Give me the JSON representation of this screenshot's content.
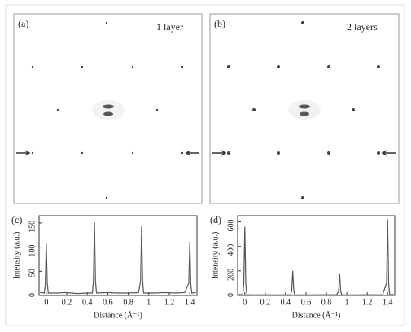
{
  "panels": [
    {
      "label": "(a)",
      "caption": "1 layer"
    },
    {
      "label": "(b)",
      "caption": "2 layers"
    }
  ],
  "chart_data": [
    {
      "type": "line",
      "label": "(c)",
      "x_label": "Distance (Å⁻¹)",
      "y_label": "Intensity (a.u.)",
      "color": "#555555",
      "x": [
        -0.06,
        -0.02,
        -0.01,
        0,
        0.01,
        0.02,
        0.1,
        0.2,
        0.3,
        0.4,
        0.45,
        0.46,
        0.47,
        0.48,
        0.49,
        0.6,
        0.7,
        0.8,
        0.9,
        0.92,
        0.93,
        0.94,
        0.95,
        1.05,
        1.15,
        1.25,
        1.35,
        1.39,
        1.4,
        1.41,
        1.42,
        1.46
      ],
      "series": [
        {
          "values": [
            6,
            5,
            20,
            108,
            25,
            5,
            5,
            6,
            4,
            5,
            5,
            30,
            152,
            30,
            5,
            6,
            5,
            5,
            6,
            30,
            143,
            30,
            5,
            5,
            6,
            5,
            6,
            25,
            110,
            22,
            5,
            6
          ]
        }
      ],
      "xlim": [
        -0.07,
        1.47
      ],
      "xticks": [
        0,
        0.2,
        0.4,
        0.6,
        0.8,
        1,
        1.2,
        1.4
      ],
      "ylim": [
        0,
        165
      ],
      "yticks": [
        0,
        50,
        100,
        150
      ]
    },
    {
      "type": "line",
      "label": "(d)",
      "x_label": "Distance (Å⁻¹)",
      "y_label": "Intensity (a.u.)",
      "color": "#555555",
      "x": [
        -0.06,
        -0.02,
        -0.01,
        0,
        0.01,
        0.02,
        0.1,
        0.2,
        0.3,
        0.4,
        0.45,
        0.46,
        0.47,
        0.48,
        0.49,
        0.6,
        0.7,
        0.8,
        0.9,
        0.92,
        0.93,
        0.94,
        0.95,
        1.05,
        1.15,
        1.25,
        1.35,
        1.39,
        1.4,
        1.41,
        1.42,
        1.46
      ],
      "series": [
        {
          "values": [
            8,
            6,
            100,
            560,
            90,
            6,
            4,
            5,
            4,
            5,
            5,
            40,
            200,
            40,
            5,
            4,
            5,
            5,
            5,
            35,
            175,
            35,
            5,
            4,
            5,
            5,
            5,
            100,
            620,
            100,
            6,
            8
          ]
        }
      ],
      "xlim": [
        -0.07,
        1.47
      ],
      "xticks": [
        0,
        0.2,
        0.4,
        0.6,
        0.8,
        1,
        1.2,
        1.4
      ],
      "ylim": [
        0,
        650
      ],
      "yticks": [
        0,
        200,
        400,
        600
      ]
    }
  ]
}
